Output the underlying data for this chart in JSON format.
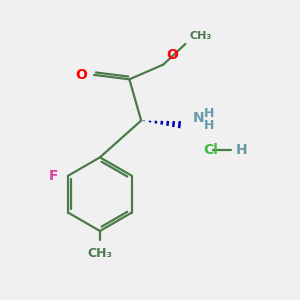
{
  "bg_color": "#f0f0f0",
  "bond_color": "#4a7a4a",
  "bond_lw": 1.6,
  "atom_colors": {
    "O": "#ff0000",
    "N": "#6699aa",
    "N_dash": "#0000bb",
    "F": "#e040a0",
    "Cl": "#44bb44",
    "H": "#6699aa",
    "C": "#4a7a4a"
  },
  "font_size": 10
}
